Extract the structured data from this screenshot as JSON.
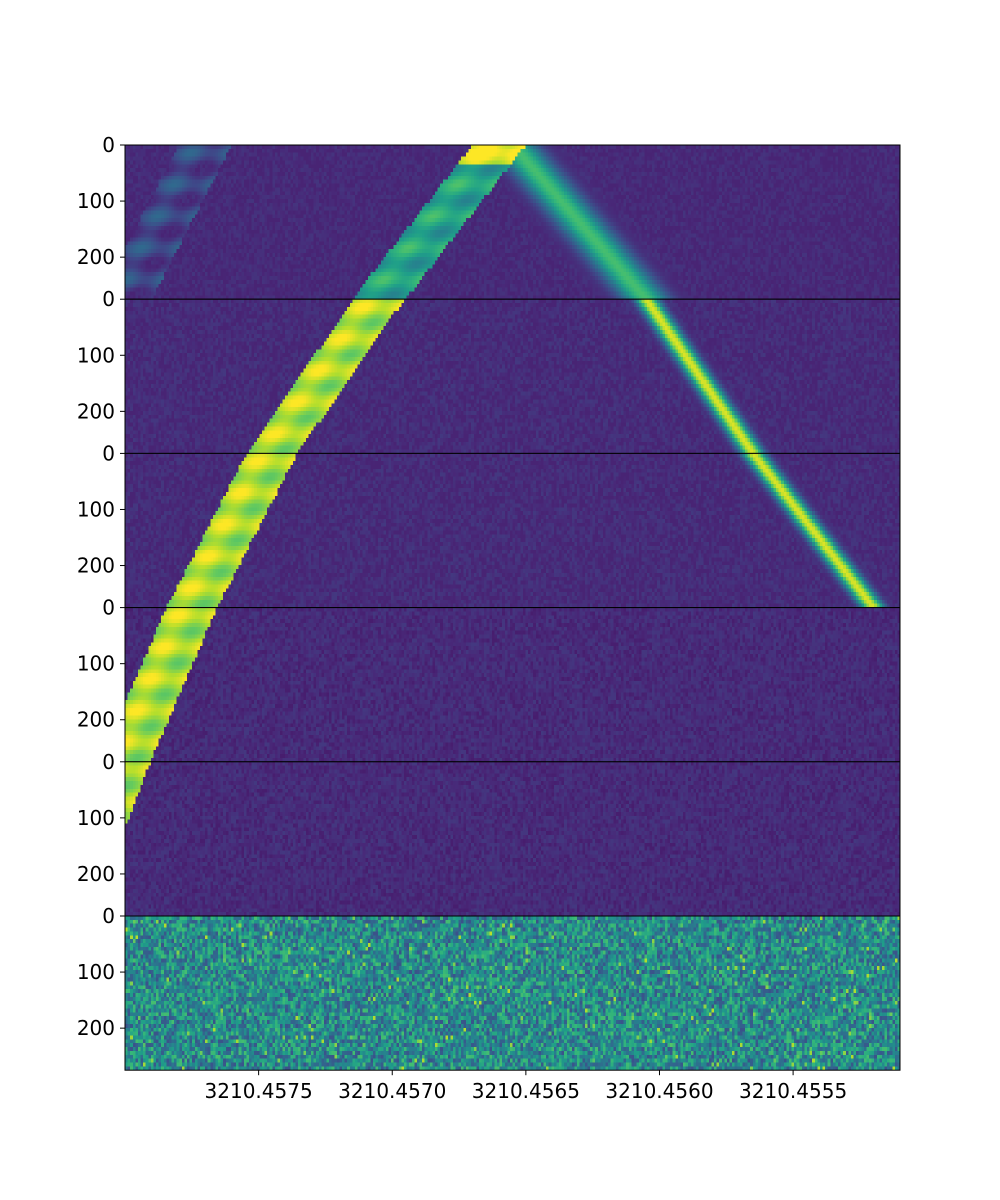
{
  "chart_data": {
    "type": "heatmap",
    "layout": "six stacked waterfall panels sharing one frequency axis",
    "colormap": "viridis",
    "x_axis": {
      "range": [
        3210.458,
        3210.4551
      ],
      "inverted": true,
      "ticks": [
        3210.4575,
        3210.457,
        3210.4565,
        3210.456,
        3210.4555
      ],
      "tick_labels": [
        "3210.4575",
        "3210.4570",
        "3210.4565",
        "3210.4560",
        "3210.4555"
      ]
    },
    "panels": [
      {
        "y_range": [
          0,
          275
        ],
        "y_ticks": [
          0,
          100,
          200
        ],
        "noise_level": 0.12,
        "signals": [
          {
            "type": "band",
            "f_start": 3210.4566,
            "f_end": 3210.45705,
            "width": 0.0002,
            "intensity": 0.58,
            "peak_top": 0.95
          },
          {
            "type": "band",
            "f_start": 3210.4577,
            "f_end": 3210.458,
            "width": 0.0002,
            "intensity": 0.2
          },
          {
            "type": "gauss",
            "f_start": 3210.45655,
            "f_end": 3210.45605,
            "sigma": 6e-05,
            "intensity": 0.6
          }
        ]
      },
      {
        "y_range": [
          0,
          275
        ],
        "y_ticks": [
          0,
          100,
          200
        ],
        "noise_level": 0.14,
        "signals": [
          {
            "type": "band",
            "f_start": 3210.45705,
            "f_end": 3210.45745,
            "width": 0.00019,
            "intensity": 0.88
          },
          {
            "type": "gauss",
            "f_start": 3210.45605,
            "f_end": 3210.45565,
            "sigma": 3e-05,
            "intensity": 0.85
          }
        ]
      },
      {
        "y_range": [
          0,
          275
        ],
        "y_ticks": [
          0,
          100,
          200
        ],
        "noise_level": 0.14,
        "signals": [
          {
            "type": "band",
            "f_start": 3210.45745,
            "f_end": 3210.45775,
            "width": 0.00019,
            "intensity": 0.88
          },
          {
            "type": "gauss",
            "f_start": 3210.45565,
            "f_end": 3210.4552,
            "sigma": 3e-05,
            "intensity": 0.85
          }
        ]
      },
      {
        "y_range": [
          0,
          275
        ],
        "y_ticks": [
          0,
          100,
          200
        ],
        "noise_level": 0.14,
        "signals": [
          {
            "type": "band",
            "f_start": 3210.45775,
            "f_end": 3210.458,
            "width": 0.00019,
            "intensity": 0.88
          }
        ]
      },
      {
        "y_range": [
          0,
          275
        ],
        "y_ticks": [
          0,
          100,
          200
        ],
        "noise_level": 0.14,
        "signals": [
          {
            "type": "band",
            "f_start": 3210.458,
            "f_end": 3210.45822,
            "width": 0.00019,
            "intensity": 0.88
          }
        ]
      },
      {
        "y_range": [
          0,
          275
        ],
        "y_ticks": [
          0,
          100,
          200
        ],
        "noise_level": 0.45,
        "signals": []
      }
    ]
  }
}
